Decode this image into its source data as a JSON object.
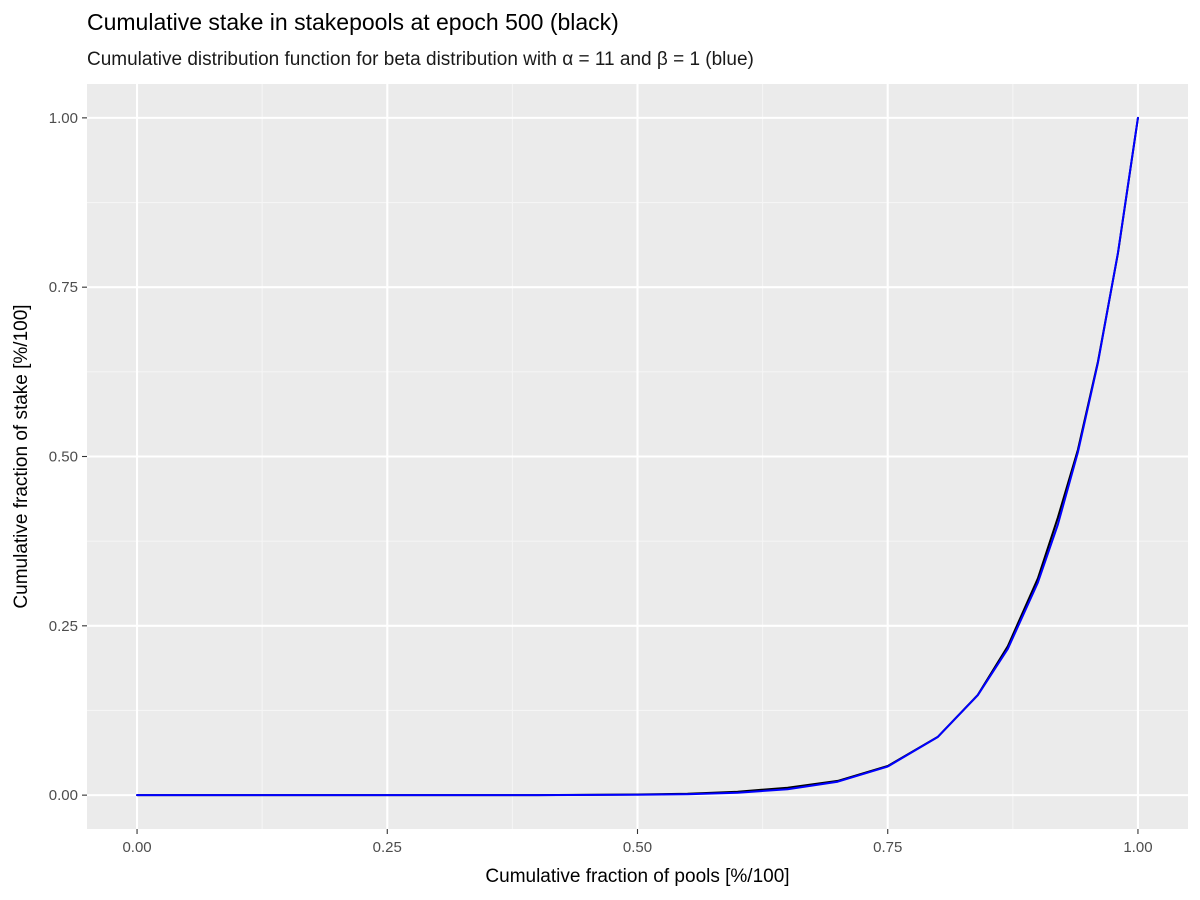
{
  "chart_data": {
    "type": "line",
    "title": "Cumulative stake in stakepools at epoch 500 (black)",
    "subtitle": "Cumulative distribution function for beta distribution with α = 11 and β = 1 (blue)",
    "xlabel": "Cumulative fraction of pools [%/100]",
    "ylabel": "Cumulative fraction of stake [%/100]",
    "xlim": [
      -0.05,
      1.05
    ],
    "ylim": [
      -0.05,
      1.05
    ],
    "x_ticks": [
      0,
      0.25,
      0.5,
      0.75,
      1.0
    ],
    "x_tick_labels": [
      "0.00",
      "0.25",
      "0.50",
      "0.75",
      "1.00"
    ],
    "y_ticks": [
      0,
      0.25,
      0.5,
      0.75,
      1.0
    ],
    "y_tick_labels": [
      "0.00",
      "0.25",
      "0.50",
      "0.75",
      "1.00"
    ],
    "grid": true,
    "legend": "none",
    "series": [
      {
        "color": "#000000",
        "x": [
          0,
          0.1,
          0.2,
          0.3,
          0.4,
          0.5,
          0.55,
          0.6,
          0.65,
          0.7,
          0.75,
          0.8,
          0.84,
          0.87,
          0.9,
          0.92,
          0.94,
          0.96,
          0.98,
          1.0
        ],
        "y": [
          0,
          0,
          0,
          0,
          0,
          0.001,
          0.002,
          0.005,
          0.011,
          0.021,
          0.043,
          0.086,
          0.148,
          0.22,
          0.32,
          0.41,
          0.51,
          0.64,
          0.8,
          1.0
        ]
      },
      {
        "color": "#0000ff",
        "x": [
          0,
          0.1,
          0.2,
          0.3,
          0.4,
          0.5,
          0.55,
          0.6,
          0.65,
          0.7,
          0.75,
          0.8,
          0.84,
          0.87,
          0.9,
          0.92,
          0.94,
          0.96,
          0.98,
          1.0
        ],
        "y": [
          0,
          0,
          0,
          0,
          0,
          0.0005,
          0.0014,
          0.0036,
          0.0087,
          0.0198,
          0.0422,
          0.0859,
          0.1476,
          0.2161,
          0.3138,
          0.3996,
          0.5063,
          0.6382,
          0.8007,
          1.0
        ]
      }
    ]
  }
}
